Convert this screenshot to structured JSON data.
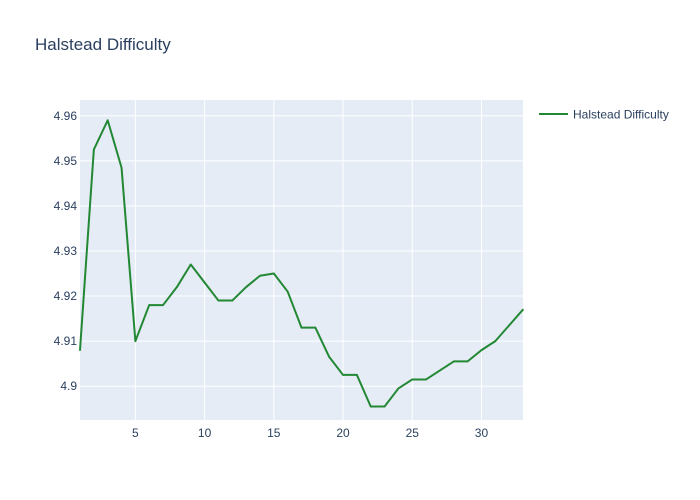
{
  "chart_data": {
    "type": "line",
    "title": "Halstead Difficulty",
    "xlabel": "",
    "ylabel": "",
    "xlim": [
      1,
      33
    ],
    "ylim": [
      4.8925,
      4.9635
    ],
    "x_ticks": [
      5,
      10,
      15,
      20,
      25,
      30
    ],
    "y_ticks": [
      4.9,
      4.91,
      4.92,
      4.93,
      4.94,
      4.95,
      4.96
    ],
    "y_tick_labels": [
      "4.9",
      "4.91",
      "4.92",
      "4.93",
      "4.94",
      "4.95",
      "4.96"
    ],
    "grid": true,
    "legend_position": "top-right",
    "plot_background": "#e5ecf6",
    "series": [
      {
        "name": "Halstead Difficulty",
        "color": "#228833",
        "x": [
          1,
          2,
          3,
          4,
          5,
          6,
          7,
          8,
          9,
          10,
          11,
          12,
          13,
          14,
          15,
          16,
          17,
          18,
          19,
          20,
          21,
          22,
          23,
          24,
          25,
          26,
          27,
          28,
          29,
          30,
          31,
          32,
          33
        ],
        "values": [
          4.908,
          4.9525,
          4.959,
          4.9485,
          4.91,
          4.918,
          4.918,
          4.922,
          4.927,
          4.923,
          4.919,
          4.919,
          4.922,
          4.9245,
          4.925,
          4.921,
          4.913,
          4.913,
          4.9065,
          4.9025,
          4.9025,
          4.8955,
          4.8955,
          4.8995,
          4.9015,
          4.9015,
          4.9035,
          4.9055,
          4.9055,
          4.908,
          4.91,
          4.9135,
          4.917
        ]
      }
    ]
  }
}
